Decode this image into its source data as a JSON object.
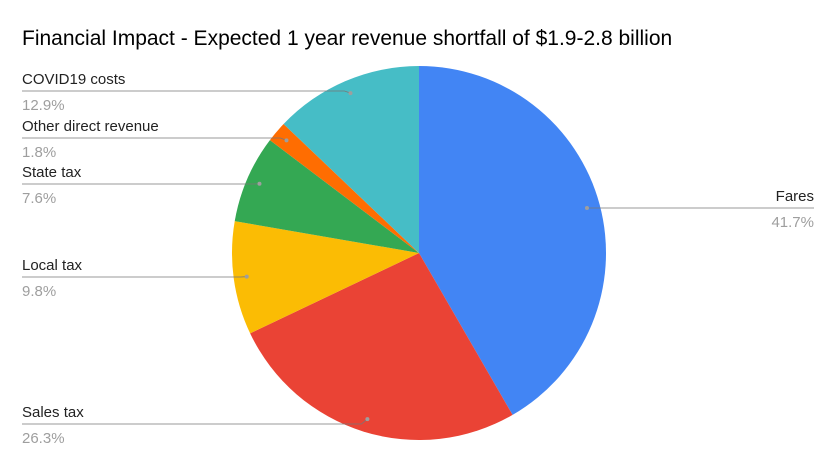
{
  "chart_data": {
    "type": "pie",
    "title": "Financial Impact - Expected 1 year revenue shortfall of $1.9-2.8 billion",
    "slices": [
      {
        "label": "Fares",
        "value": 41.7,
        "value_label": "41.7%",
        "color": "#4285f4"
      },
      {
        "label": "Sales tax",
        "value": 26.3,
        "value_label": "26.3%",
        "color": "#ea4335"
      },
      {
        "label": "Local tax",
        "value": 9.8,
        "value_label": "9.8%",
        "color": "#fbbc04"
      },
      {
        "label": "State tax",
        "value": 7.6,
        "value_label": "7.6%",
        "color": "#34a853"
      },
      {
        "label": "Other direct revenue",
        "value": 1.8,
        "value_label": "1.8%",
        "color": "#ff6d01"
      },
      {
        "label": "COVID19 costs",
        "value": 12.9,
        "value_label": "12.9%",
        "color": "#46bdc6"
      }
    ],
    "start_angle_deg": 0,
    "direction": "clockwise",
    "legend": "labels beside slices"
  }
}
